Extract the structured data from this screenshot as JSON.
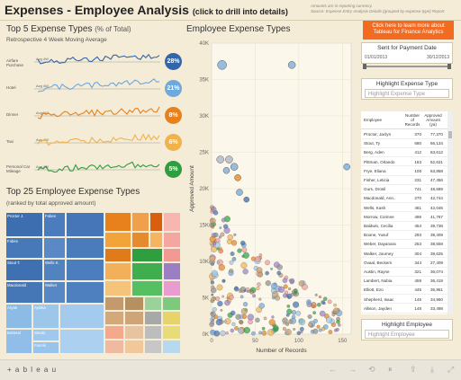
{
  "header": {
    "title": "Expenses - Employee Analysis",
    "subtitle": "(click to drill into details)",
    "notes": [
      "Amounts are in reporting currency.",
      "Source: Expense Entry Analysis Details (grouped by expense type) Report"
    ]
  },
  "top5": {
    "title": "Top 5 Expense Types",
    "title_pct": "(% of Total)",
    "subtitle": "Retrospective 4 Week Moving Average",
    "rows": [
      {
        "label": "Airfare Purchase",
        "badge": "28%",
        "color": "#3366a8",
        "avg": "Avg 4W"
      },
      {
        "label": "Hotel",
        "badge": "21%",
        "color": "#6fa8dc",
        "avg": "Avg 4W"
      },
      {
        "label": "Dinner",
        "badge": "8%",
        "color": "#e8811c",
        "avg": "Avg 1W"
      },
      {
        "label": "Taxi",
        "badge": "6%",
        "color": "#f2b24a",
        "avg": "Avg 4W"
      },
      {
        "label": "Personal Car Mileage",
        "badge": "5%",
        "color": "#2e9e3e",
        "avg": "Avg 4W"
      }
    ]
  },
  "top25": {
    "title": "Top 25 Employee Expense Types",
    "subtitle": "(ranked by total approved amount)",
    "labels": [
      "Proctor J.",
      "Fobes",
      "Stout T.",
      "Wells K.",
      "Macdonald",
      "Pascal",
      "Franks",
      "Elliott",
      "Walket",
      "Aryak",
      "Ayinka",
      "Stout2",
      "Fannik",
      "Betteral"
    ]
  },
  "scatter": {
    "title": "Employee Expense Types",
    "xlabel": "Number of Records",
    "ylabel": "Approved Amount",
    "y_ticks": [
      "40K",
      "35K",
      "30K",
      "25K",
      "20K",
      "15K",
      "10K",
      "5K",
      "0K"
    ],
    "x_ticks": [
      "0",
      "50",
      "100",
      "150"
    ],
    "ylim": [
      0,
      40000
    ],
    "xlim": [
      0,
      160
    ]
  },
  "sidebar": {
    "cta": "Click here to learn more about Tableau for Finance Analytics",
    "date_filter_title": "Sent for Payment Date",
    "date_from": "01/01/2013",
    "date_to": "30/12/2013",
    "highlight_type_title": "Highlight Expense Type",
    "highlight_type_placeholder": "Highlight Expense Type",
    "highlight_emp_title": "Highlight Employee",
    "highlight_emp_placeholder": "Highlight Employee"
  },
  "table": {
    "col_employee": "Employee",
    "col_records": "Number of Records",
    "col_amount": "Approved Amount (ya)",
    "rows": [
      [
        "Proctor, Jaclyn",
        "370",
        "77,370"
      ],
      [
        "Stout, Ty",
        "680",
        "66,134"
      ],
      [
        "Berg, Aden",
        "412",
        "63,612"
      ],
      [
        "Pittman, Orlando",
        "163",
        "62,631"
      ],
      [
        "Frye, Eliana",
        "106",
        "63,858"
      ],
      [
        "Fisher, Leticia",
        "231",
        "47,456"
      ],
      [
        "Gurs, Drosil",
        "741",
        "48,589"
      ],
      [
        "Macdonald, Ann..",
        "270",
        "42,744"
      ],
      [
        "Wells, Kash",
        "481",
        "42,046"
      ],
      [
        "Morrow, Corinne",
        "496",
        "41,767"
      ],
      [
        "Baldwin, Cecilia",
        "454",
        "39,738"
      ],
      [
        "Boone, Yusuf",
        "293",
        "39,409"
      ],
      [
        "Weber, Dayanara",
        "253",
        "38,559"
      ],
      [
        "Walker, Journey",
        "304",
        "38,625"
      ],
      [
        "Ovaal, Beckem",
        "344",
        "27,409"
      ],
      [
        "Austin, Rayne",
        "321",
        "36,074"
      ],
      [
        "Lambert, Nubia",
        "459",
        "36,419"
      ],
      [
        "Elliott, Ezo",
        "445",
        "35,951"
      ],
      [
        "Shepherd, Isaac",
        "145",
        "34,960"
      ],
      [
        "Allison, Jayden",
        "148",
        "33,498"
      ]
    ]
  },
  "footer": {
    "brand": "+ a b l e a u"
  }
}
